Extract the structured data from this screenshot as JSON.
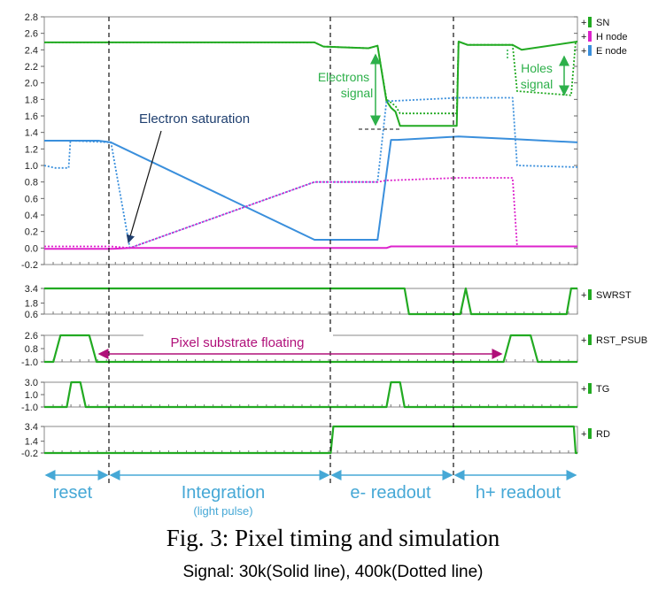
{
  "chart_data": [
    {
      "type": "line",
      "panel": "main",
      "ylim": [
        -0.2,
        2.8
      ],
      "yticks": [
        "2.8",
        "2.6",
        "2.4",
        "2.2",
        "2.0",
        "1.8",
        "1.6",
        "1.4",
        "1.2",
        "1.0",
        "0.8",
        "0.6",
        "0.4",
        "0.2",
        "0.0",
        "-0.2"
      ],
      "series": [
        {
          "name": "SN",
          "color": "#22aa22",
          "line": "solid",
          "label": "30k",
          "x": [
            0,
            30,
            300,
            310,
            360,
            370,
            380,
            385,
            390,
            395,
            458,
            460,
            470,
            520,
            530,
            592
          ],
          "y": [
            2.49,
            2.49,
            2.49,
            2.44,
            2.42,
            2.45,
            1.78,
            1.7,
            1.65,
            1.48,
            1.48,
            2.5,
            2.46,
            2.46,
            2.4,
            2.5
          ]
        },
        {
          "name": "SN",
          "color": "#22aa22",
          "line": "dotted",
          "label": "400k",
          "x": [
            0,
            300,
            310,
            360,
            370,
            380,
            390,
            395,
            458,
            460,
            470,
            520,
            525,
            585,
            590,
            592
          ],
          "y": [
            2.49,
            2.49,
            2.44,
            2.42,
            2.45,
            1.8,
            1.72,
            1.63,
            1.63,
            2.5,
            2.46,
            2.46,
            1.9,
            1.85,
            2.5,
            2.5
          ]
        },
        {
          "name": "E node",
          "color": "#3a8fdc",
          "line": "solid",
          "label": "30k",
          "x": [
            0,
            25,
            60,
            74,
            300,
            310,
            370,
            385,
            392,
            460,
            520,
            592
          ],
          "y": [
            1.3,
            1.3,
            1.3,
            1.28,
            0.1,
            0.1,
            0.1,
            1.31,
            1.31,
            1.35,
            1.32,
            1.28
          ]
        },
        {
          "name": "E node",
          "color": "#3a8fdc",
          "line": "dotted",
          "label": "400k",
          "x": [
            0,
            12,
            27,
            29,
            74,
            95,
            300,
            370,
            380,
            385,
            460,
            520,
            525,
            592
          ],
          "y": [
            1.0,
            0.97,
            0.97,
            1.3,
            1.28,
            0.0,
            0.8,
            0.8,
            1.78,
            1.78,
            1.82,
            1.82,
            1.0,
            0.98
          ]
        },
        {
          "name": "H node",
          "color": "#dd22cc",
          "line": "solid",
          "label": "30k",
          "x": [
            0,
            74,
            95,
            300,
            380,
            385,
            460,
            520,
            592
          ],
          "y": [
            -0.01,
            -0.01,
            0.0,
            0.0,
            0.0,
            0.02,
            0.02,
            0.02,
            0.02
          ]
        },
        {
          "name": "H node",
          "color": "#dd22cc",
          "line": "dotted",
          "label": "400k",
          "x": [
            0,
            74,
            95,
            300,
            370,
            380,
            385,
            460,
            520,
            525,
            592
          ],
          "y": [
            0.02,
            0.02,
            0.0,
            0.8,
            0.8,
            0.82,
            0.82,
            0.85,
            0.85,
            0.02,
            0.02
          ]
        }
      ],
      "annotations": [
        {
          "text": "Electron saturation"
        },
        {
          "text": "Electrons\nsignal"
        },
        {
          "text": "Holes\nsignal"
        }
      ]
    },
    {
      "type": "line",
      "panel": "SWRST",
      "yticks": [
        "3.4",
        "1.8",
        "0.6"
      ],
      "series": [
        {
          "name": "SWRST",
          "color": "#22aa22",
          "line": "solid",
          "x": [
            0,
            300,
            305,
            400,
            405,
            458,
            462,
            468,
            474,
            580,
            585,
            592
          ],
          "y": [
            3.4,
            3.4,
            3.4,
            3.4,
            0.6,
            0.6,
            0.6,
            3.4,
            0.6,
            0.6,
            3.4,
            3.4
          ]
        }
      ]
    },
    {
      "type": "line",
      "panel": "RST_PSUB",
      "yticks": [
        "2.6",
        "0.8",
        "-1.0"
      ],
      "series": [
        {
          "name": "RST_PSUB",
          "color": "#22aa22",
          "line": "solid",
          "x": [
            0,
            10,
            18,
            50,
            58,
            510,
            518,
            540,
            548,
            592
          ],
          "y": [
            -1.0,
            -1.0,
            2.6,
            2.6,
            -1.0,
            -1.0,
            2.6,
            2.6,
            -1.0,
            -1.0
          ]
        }
      ],
      "annotations": [
        {
          "text": "Pixel substrate floating"
        }
      ]
    },
    {
      "type": "line",
      "panel": "TG",
      "yticks": [
        "3.0",
        "1.0",
        "-1.0"
      ],
      "series": [
        {
          "name": "TG",
          "color": "#22aa22",
          "line": "solid",
          "x": [
            0,
            25,
            30,
            40,
            46,
            380,
            385,
            395,
            400,
            592
          ],
          "y": [
            -1.0,
            -1.0,
            3.0,
            3.0,
            -1.0,
            -1.0,
            3.0,
            3.0,
            -1.0,
            -1.0
          ]
        }
      ]
    },
    {
      "type": "line",
      "panel": "RD",
      "yticks": [
        "3.4",
        "1.4",
        "-0.2"
      ],
      "series": [
        {
          "name": "RD",
          "color": "#22aa22",
          "line": "solid",
          "x": [
            0,
            318,
            321,
            588,
            590,
            592
          ],
          "y": [
            -0.2,
            -0.2,
            3.4,
            3.4,
            -0.2,
            -0.2
          ]
        }
      ]
    }
  ],
  "phases": [
    {
      "label": "reset",
      "sublabel": ""
    },
    {
      "label": "Integration",
      "sublabel": "(light pulse)"
    },
    {
      "label": "e- readout",
      "sublabel": ""
    },
    {
      "label": "h+ readout",
      "sublabel": ""
    }
  ],
  "caption": {
    "title": "Fig. 3: Pixel timing and simulation",
    "subtitle": "Signal: 30k(Solid line), 400k(Dotted line)"
  },
  "colors": {
    "sn": "#22aa22",
    "e_node": "#3a8fdc",
    "h_node": "#dd22cc",
    "annotation_green": "#2db04a",
    "annotation_blue": "#1f3f6f",
    "annotation_purple": "#b0107a",
    "phase": "#46a8d6"
  }
}
